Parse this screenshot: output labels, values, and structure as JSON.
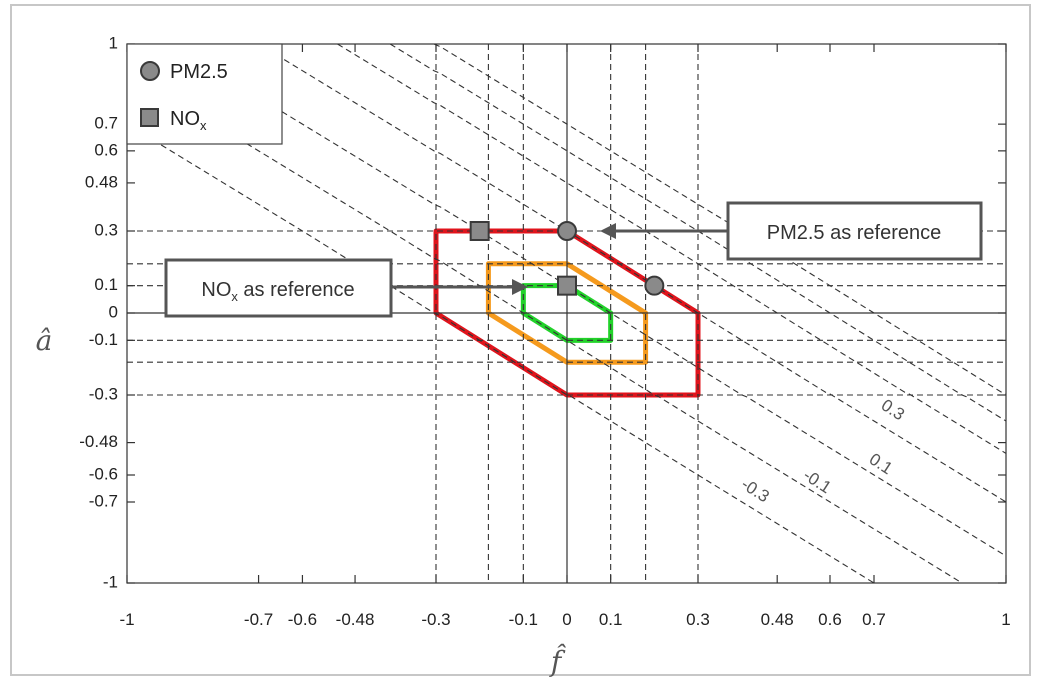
{
  "chart_data": {
    "type": "line",
    "xlabel": "f̂",
    "ylabel": "â",
    "xlim": [
      -1,
      1
    ],
    "ylim": [
      -1,
      1
    ],
    "x_ticks": [
      -1,
      -0.7,
      -0.6,
      -0.48,
      -0.3,
      -0.1,
      0,
      0.1,
      0.3,
      0.48,
      0.6,
      0.7,
      1
    ],
    "x_tick_labels": [
      "-1",
      "-0.7",
      "-0.6",
      "-0.48",
      "-0.3",
      "-0.1",
      "0",
      "0.1",
      "0.3",
      "0.48",
      "0.6",
      "0.7",
      "1"
    ],
    "y_ticks": [
      -1,
      -0.7,
      -0.6,
      -0.48,
      -0.3,
      -0.1,
      0,
      0.1,
      0.3,
      0.48,
      0.6,
      0.7,
      1
    ],
    "y_tick_labels": [
      "-1",
      "-0.7",
      "-0.6",
      "-0.48",
      "-0.3",
      "-0.1",
      "0",
      "0.1",
      "0.3",
      "0.48",
      "0.6",
      "0.7",
      "1"
    ],
    "vertical_guides": [
      -0.3,
      -0.18,
      -0.1,
      0.1,
      0.18,
      0.3
    ],
    "horizontal_guides": [
      0.3,
      0.18,
      0.1,
      -0.1,
      -0.18,
      -0.3
    ],
    "diagonal_contours": [
      {
        "label": "0.3",
        "c": 0.3
      },
      {
        "label": "0.1",
        "c": 0.1
      },
      {
        "label": "-0.1",
        "c": -0.1
      },
      {
        "label": "-0.3",
        "c": -0.3
      }
    ],
    "extra_diagonals": [
      0.48,
      0.6,
      0.7
    ],
    "regions": [
      {
        "name": "red",
        "color": "#e0141c",
        "points": [
          [
            -0.3,
            0.3
          ],
          [
            0,
            0.3
          ],
          [
            0.3,
            0
          ],
          [
            0.3,
            -0.3
          ],
          [
            0,
            -0.3
          ],
          [
            -0.3,
            0
          ]
        ]
      },
      {
        "name": "orange",
        "color": "#f59a1d",
        "points": [
          [
            -0.18,
            0.18
          ],
          [
            0,
            0.18
          ],
          [
            0.18,
            0
          ],
          [
            0.18,
            -0.18
          ],
          [
            0,
            -0.18
          ],
          [
            -0.18,
            0
          ]
        ]
      },
      {
        "name": "green",
        "color": "#22d22a",
        "points": [
          [
            -0.1,
            0.1
          ],
          [
            0,
            0.1
          ],
          [
            0.1,
            0
          ],
          [
            0.1,
            -0.1
          ],
          [
            0,
            -0.1
          ],
          [
            -0.1,
            0
          ]
        ]
      }
    ],
    "markers": {
      "pm25": [
        [
          0,
          0.3
        ],
        [
          0.2,
          0.1
        ]
      ],
      "nox": [
        [
          -0.2,
          0.3
        ],
        [
          0,
          0.1
        ]
      ]
    },
    "legend": {
      "placement": "top-left",
      "items": [
        {
          "label": "PM2.5",
          "marker": "circle"
        },
        {
          "label": "NO",
          "subscript": "x",
          "marker": "square"
        }
      ]
    },
    "annotations": [
      {
        "id": "pm25-ref",
        "text": "PM2.5 as reference"
      },
      {
        "id": "nox-ref",
        "text_main": "NO",
        "text_sub": "x",
        "text_rest": " as reference"
      }
    ]
  },
  "colors": {
    "marker_fill": "#8a8a8a",
    "marker_stroke": "#3a3a3a",
    "guide": "#333333",
    "callout_border": "#555555"
  }
}
